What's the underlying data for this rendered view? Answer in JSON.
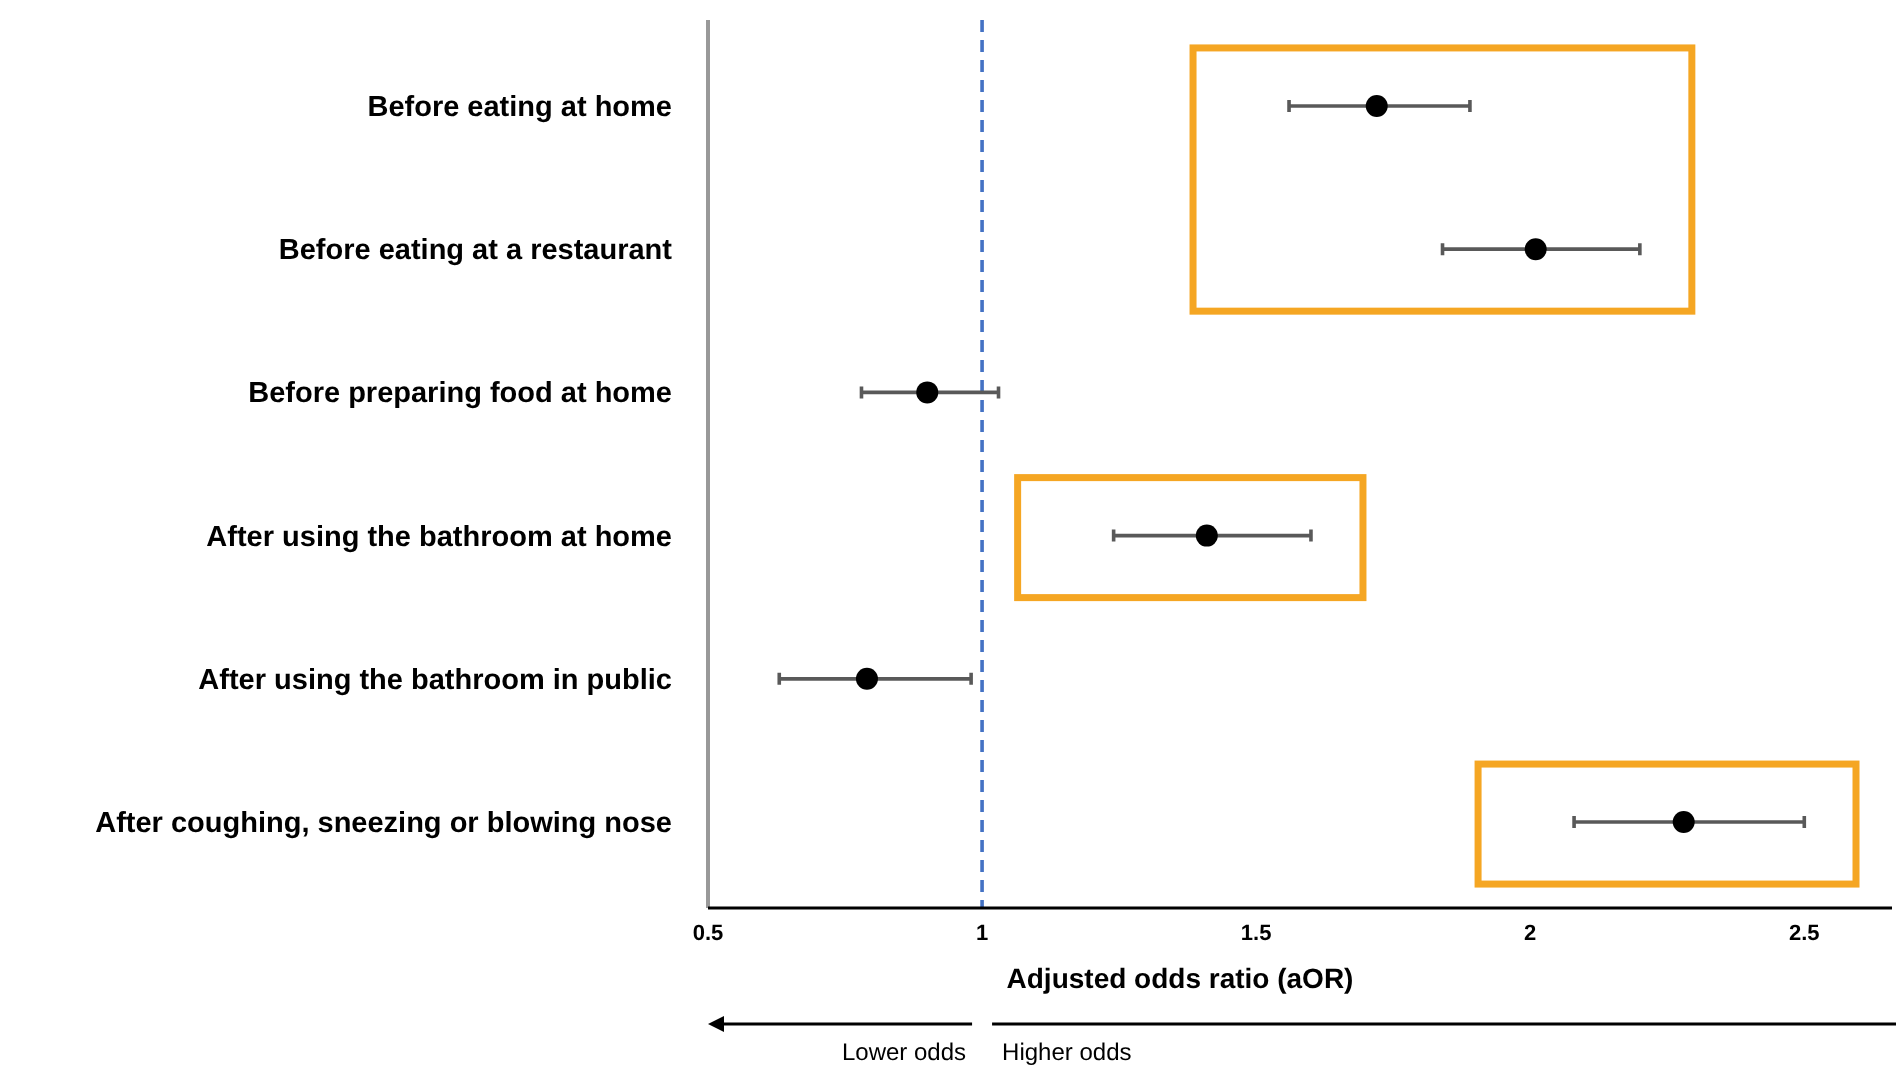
{
  "chart_data": {
    "type": "scatter",
    "orientation": "horizontal",
    "xlabel": "Adjusted odds ratio (aOR)",
    "categories": [
      "Before eating at home",
      "Before eating at a restaurant",
      "Before preparing food at home",
      "After using the bathroom at home",
      "After using the bathroom in public",
      "After coughing, sneezing or blowing nose"
    ],
    "color": "#000000",
    "values": [
      1.72,
      2.01,
      0.9,
      1.41,
      0.79,
      2.28
    ],
    "errors": [
      [
        1.56,
        1.89
      ],
      [
        1.84,
        2.2
      ],
      [
        0.78,
        1.03
      ],
      [
        1.24,
        1.6
      ],
      [
        0.63,
        0.98
      ],
      [
        2.08,
        2.5
      ]
    ],
    "xlim": [
      0.5,
      2.66
    ],
    "xticks": [
      0.5,
      1,
      1.5,
      2,
      2.5
    ],
    "marker": "circle",
    "grid": false,
    "ref_lines": [
      {
        "axis": "x",
        "value": 1,
        "color": "#4472c4",
        "line_style": "dashed"
      }
    ],
    "annotations": [
      "Lower odds",
      "Higher odds"
    ]
  }
}
